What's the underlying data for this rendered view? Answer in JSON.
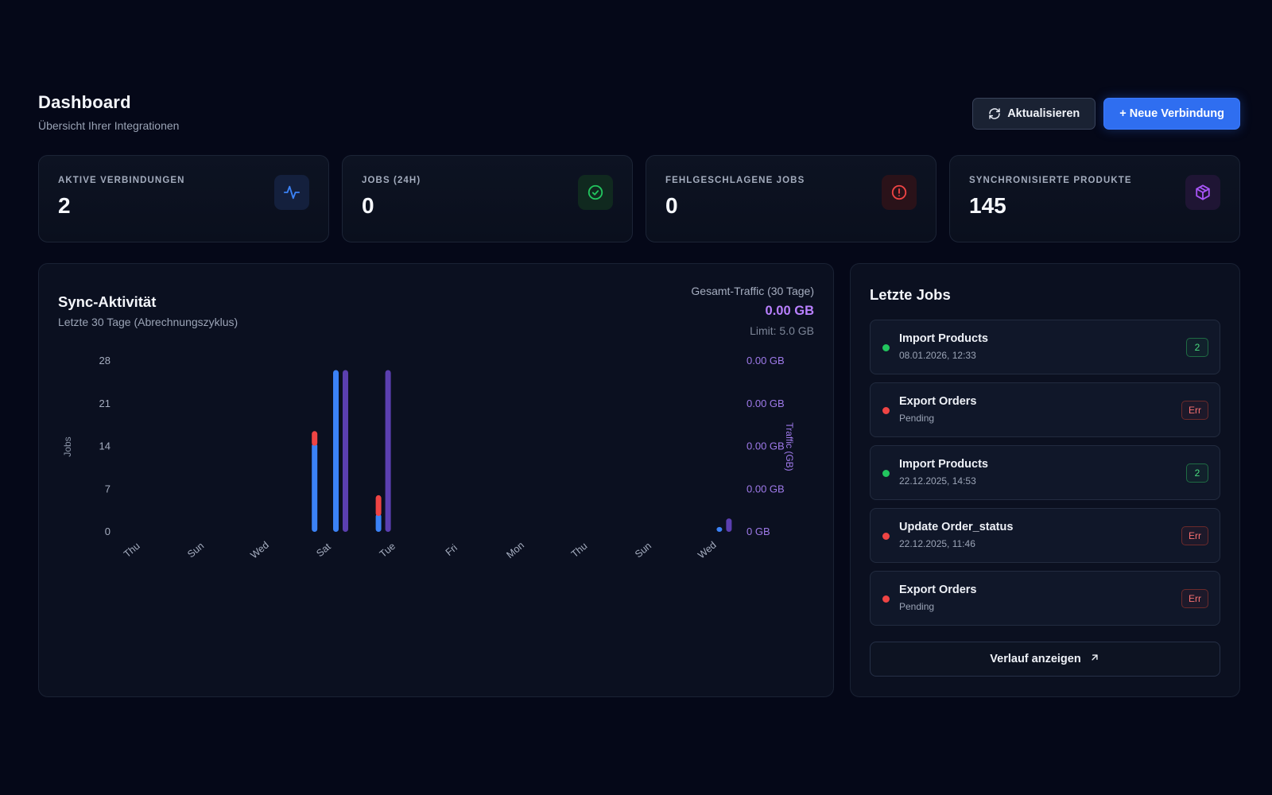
{
  "header": {
    "title": "Dashboard",
    "subtitle": "Übersicht Ihrer Integrationen",
    "refresh_label": "Aktualisieren",
    "new_connection_label": "+ Neue Verbindung"
  },
  "stats": [
    {
      "label": "AKTIVE VERBINDUNGEN",
      "value": "2",
      "icon": "activity-icon",
      "color": "#3b82f6"
    },
    {
      "label": "JOBS (24H)",
      "value": "0",
      "icon": "check-circle-icon",
      "color": "#22c55e"
    },
    {
      "label": "FEHLGESCHLAGENE JOBS",
      "value": "0",
      "icon": "alert-circle-icon",
      "color": "#ef4444"
    },
    {
      "label": "SYNCHRONISIERTE PRODUKTE",
      "value": "145",
      "icon": "package-icon",
      "color": "#a855f7"
    }
  ],
  "sync_activity": {
    "title": "Sync-Aktivität",
    "subtitle": "Letzte 30 Tage (Abrechnungszyklus)",
    "traffic_label": "Gesamt-Traffic (30 Tage)",
    "traffic_value": "0.00 GB",
    "traffic_limit": "Limit: 5.0 GB"
  },
  "chart_data": {
    "type": "bar",
    "ylabel": "Jobs",
    "y2label": "Traffic (GB)",
    "ylim": [
      0,
      28
    ],
    "y_ticks": [
      "0",
      "7",
      "14",
      "21",
      "28"
    ],
    "y2_ticks": [
      "0 GB",
      "0.00 GB",
      "0.00 GB",
      "0.00 GB",
      "0.00 GB"
    ],
    "x_tick_labels": [
      "Thu",
      "Sun",
      "Wed",
      "Sat",
      "Tue",
      "Fri",
      "Mon",
      "Thu",
      "Sun",
      "Wed"
    ],
    "grid": false,
    "days": 30,
    "series": [
      {
        "color": "#3b82f6",
        "points": [
          {
            "day": 9,
            "value": 14.5
          },
          {
            "day": 10,
            "value": 26.5
          },
          {
            "day": 12,
            "value": 3
          },
          {
            "day": 28,
            "value": 0.8
          }
        ]
      },
      {
        "color": "#ef4444",
        "points": [
          {
            "day": 9,
            "value": 2
          },
          {
            "day": 12,
            "value": 3
          }
        ]
      },
      {
        "color": "#5b3fb0",
        "points": [
          {
            "day": 10,
            "value": 26.5
          },
          {
            "day": 12,
            "value": 26.5
          },
          {
            "day": 28,
            "value": 2.2
          }
        ]
      }
    ]
  },
  "jobs_panel": {
    "title": "Letzte Jobs",
    "items": [
      {
        "name": "Import Products",
        "meta": "08.01.2026, 12:33",
        "status": "ok",
        "badge": "2"
      },
      {
        "name": "Export Orders",
        "meta": "Pending",
        "status": "err",
        "badge": "Err"
      },
      {
        "name": "Import Products",
        "meta": "22.12.2025, 14:53",
        "status": "ok",
        "badge": "2"
      },
      {
        "name": "Update Order_status",
        "meta": "22.12.2025, 11:46",
        "status": "err",
        "badge": "Err"
      },
      {
        "name": "Export Orders",
        "meta": "Pending",
        "status": "err",
        "badge": "Err"
      }
    ],
    "history_label": "Verlauf anzeigen"
  },
  "colors": {
    "ok": "#22c55e",
    "err": "#ef4444",
    "axis_right": "#9f7aea"
  }
}
